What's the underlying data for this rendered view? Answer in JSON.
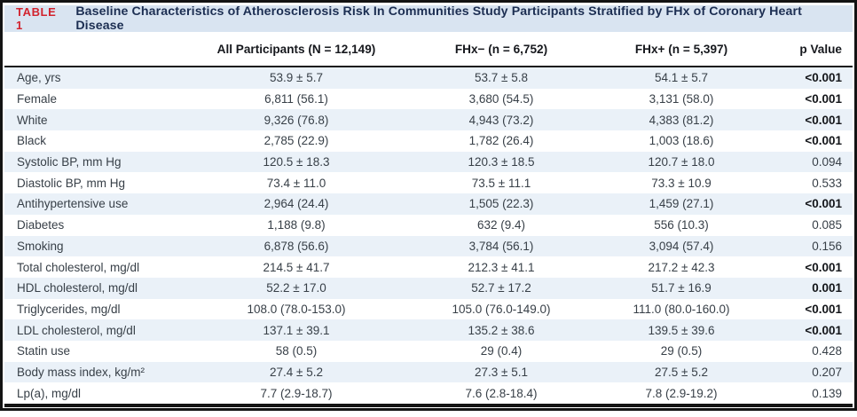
{
  "table": {
    "label": "TABLE 1",
    "title": "Baseline Characteristics of Atherosclerosis Risk In Communities Study Participants Stratified by FHx of Coronary Heart Disease",
    "header": {
      "all": "All Participants (N = 12,149)",
      "fhx_neg": "FHx− (n = 6,752)",
      "fhx_pos": "FHx+ (n = 5,397)",
      "p": "p Value"
    },
    "rows": [
      {
        "label": "Age, yrs",
        "all": "53.9 ± 5.7",
        "fhx_neg": "53.7 ± 5.8",
        "fhx_pos": "54.1 ± 5.7",
        "p": "<0.001",
        "p_bold": true
      },
      {
        "label": "Female",
        "all": "6,811 (56.1)",
        "fhx_neg": "3,680 (54.5)",
        "fhx_pos": "3,131 (58.0)",
        "p": "<0.001",
        "p_bold": true
      },
      {
        "label": "White",
        "all": "9,326 (76.8)",
        "fhx_neg": "4,943 (73.2)",
        "fhx_pos": "4,383 (81.2)",
        "p": "<0.001",
        "p_bold": true
      },
      {
        "label": "Black",
        "all": "2,785 (22.9)",
        "fhx_neg": "1,782 (26.4)",
        "fhx_pos": "1,003 (18.6)",
        "p": "<0.001",
        "p_bold": true
      },
      {
        "label": "Systolic BP, mm Hg",
        "all": "120.5 ± 18.3",
        "fhx_neg": "120.3 ± 18.5",
        "fhx_pos": "120.7 ± 18.0",
        "p": "0.094",
        "p_bold": false
      },
      {
        "label": "Diastolic BP, mm Hg",
        "all": "73.4 ± 11.0",
        "fhx_neg": "73.5 ± 11.1",
        "fhx_pos": "73.3 ± 10.9",
        "p": "0.533",
        "p_bold": false
      },
      {
        "label": "Antihypertensive use",
        "all": "2,964 (24.4)",
        "fhx_neg": "1,505 (22.3)",
        "fhx_pos": "1,459 (27.1)",
        "p": "<0.001",
        "p_bold": true
      },
      {
        "label": "Diabetes",
        "all": "1,188 (9.8)",
        "fhx_neg": "632 (9.4)",
        "fhx_pos": "556 (10.3)",
        "p": "0.085",
        "p_bold": false
      },
      {
        "label": "Smoking",
        "all": "6,878 (56.6)",
        "fhx_neg": "3,784 (56.1)",
        "fhx_pos": "3,094 (57.4)",
        "p": "0.156",
        "p_bold": false
      },
      {
        "label": "Total cholesterol, mg/dl",
        "all": "214.5 ± 41.7",
        "fhx_neg": "212.3 ± 41.1",
        "fhx_pos": "217.2 ± 42.3",
        "p": "<0.001",
        "p_bold": true
      },
      {
        "label": "HDL cholesterol, mg/dl",
        "all": "52.2 ± 17.0",
        "fhx_neg": "52.7 ± 17.2",
        "fhx_pos": "51.7 ± 16.9",
        "p": "0.001",
        "p_bold": true
      },
      {
        "label": "Triglycerides, mg/dl",
        "all": "108.0 (78.0-153.0)",
        "fhx_neg": "105.0 (76.0-149.0)",
        "fhx_pos": "111.0 (80.0-160.0)",
        "p": "<0.001",
        "p_bold": true
      },
      {
        "label": "LDL cholesterol, mg/dl",
        "all": "137.1 ± 39.1",
        "fhx_neg": "135.2 ± 38.6",
        "fhx_pos": "139.5 ± 39.6",
        "p": "<0.001",
        "p_bold": true
      },
      {
        "label": "Statin use",
        "all": "58 (0.5)",
        "fhx_neg": "29 (0.4)",
        "fhx_pos": "29 (0.5)",
        "p": "0.428",
        "p_bold": false
      },
      {
        "label": "Body mass index, kg/m²",
        "all": "27.4 ± 5.2",
        "fhx_neg": "27.3 ± 5.1",
        "fhx_pos": "27.5 ± 5.2",
        "p": "0.207",
        "p_bold": false
      },
      {
        "label": "Lp(a), mg/dl",
        "all": "7.7 (2.9-18.7)",
        "fhx_neg": "7.6 (2.8-18.4)",
        "fhx_pos": "7.8 (2.9-19.2)",
        "p": "0.139",
        "p_bold": false
      }
    ],
    "colors": {
      "accent_red": "#d2232e",
      "title_navy": "#1c2e52",
      "band_blue": "#d9e4f1",
      "stripe_blue": "#eaf1f8",
      "rule_black": "#131313"
    }
  }
}
